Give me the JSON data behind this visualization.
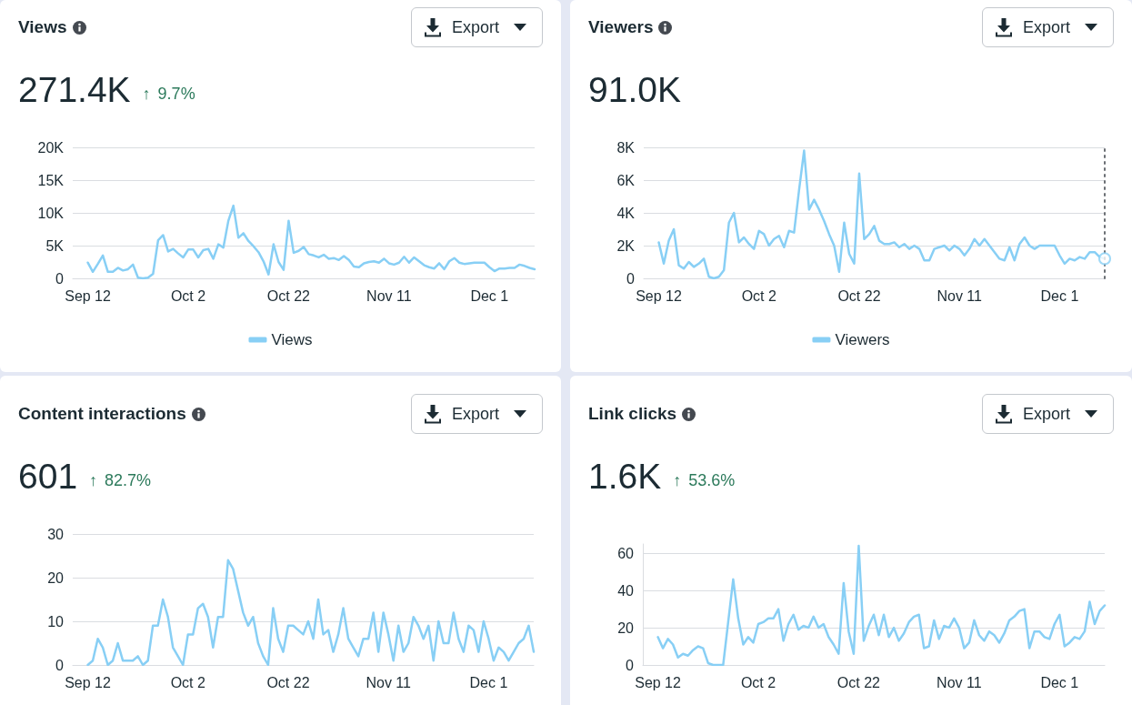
{
  "chart_data": [
    {
      "type": "line",
      "title": "Views",
      "subtitle": "271.4K",
      "annotations": [
        "↑ 9.7%",
        "Export"
      ],
      "x": [
        "--09-12",
        "--09-13",
        "--09-14",
        "--09-15",
        "--09-16",
        "--09-17",
        "--09-18",
        "--09-19",
        "--09-20",
        "--09-21",
        "--09-22",
        "--09-23",
        "--09-24",
        "--09-25",
        "--09-26",
        "--09-27",
        "--09-28",
        "--09-29",
        "--09-30",
        "--10-01",
        "--10-02",
        "--10-03",
        "--10-04",
        "--10-05",
        "--10-06",
        "--10-07",
        "--10-08",
        "--10-09",
        "--10-10",
        "--10-11",
        "--10-12",
        "--10-13",
        "--10-14",
        "--10-15",
        "--10-16",
        "--10-17",
        "--10-18",
        "--10-19",
        "--10-20",
        "--10-21",
        "--10-22",
        "--10-23",
        "--10-24",
        "--10-25",
        "--10-26",
        "--10-27",
        "--10-28",
        "--10-29",
        "--10-30",
        "--10-31",
        "--11-01",
        "--11-02",
        "--11-03",
        "--11-04",
        "--11-05",
        "--11-06",
        "--11-07",
        "--11-08",
        "--11-09",
        "--11-10",
        "--11-11",
        "--11-12",
        "--11-13",
        "--11-14",
        "--11-15",
        "--11-16",
        "--11-17",
        "--11-18",
        "--11-19",
        "--11-20",
        "--11-21",
        "--11-22",
        "--11-23",
        "--11-24",
        "--11-25",
        "--11-26",
        "--11-27",
        "--11-28",
        "--11-29",
        "--11-30",
        "--12-01",
        "--12-02",
        "--12-03",
        "--12-04",
        "--12-05",
        "--12-06",
        "--12-07",
        "--12-08",
        "--12-09",
        "--12-10"
      ],
      "series": [
        {
          "name": "Views",
          "color": "#88cff5",
          "values": [
            2400,
            1000,
            2200,
            3500,
            1000,
            1000,
            1600,
            1200,
            1400,
            2100,
            100,
            0,
            100,
            700,
            5800,
            6600,
            4100,
            4500,
            3800,
            3200,
            4400,
            4400,
            3200,
            4300,
            4500,
            3000,
            5200,
            4700,
            8800,
            11100,
            6200,
            6900,
            5700,
            4900,
            4000,
            2600,
            600,
            5200,
            2500,
            1300,
            8800,
            3900,
            4200,
            4800,
            3700,
            3500,
            3200,
            3600,
            3000,
            3100,
            2800,
            3400,
            2800,
            1800,
            1700,
            2300,
            2500,
            2600,
            2400,
            3000,
            2300,
            2100,
            2400,
            3300,
            2400,
            3200,
            2600,
            2000,
            1700,
            1500,
            2300,
            1400,
            2600,
            3100,
            2400,
            2200,
            2300,
            2400,
            2400,
            2400,
            1700,
            1100,
            1500,
            1500,
            1600,
            1600,
            2100,
            1900,
            1600,
            1400
          ]
        }
      ],
      "xlim": [
        "--09-09",
        "--12-10"
      ],
      "xticks": [
        {
          "value": "--09-12",
          "label": "Sep 12"
        },
        {
          "value": "--10-02",
          "label": "Oct 2"
        },
        {
          "value": "--10-22",
          "label": "Oct 22"
        },
        {
          "value": "--11-11",
          "label": "Nov 11"
        },
        {
          "value": "--12-01",
          "label": "Dec 1"
        }
      ],
      "ylim": [
        0,
        20000
      ],
      "yticks": [
        0,
        {
          "value": 5000,
          "label": "5K"
        },
        {
          "value": 10000,
          "label": "10K"
        },
        {
          "value": 15000,
          "label": "15K"
        },
        {
          "value": 20000,
          "label": "20K"
        }
      ],
      "grid": "y",
      "legend": "bottom",
      "marker": "none",
      "line_style": "solid"
    },
    {
      "type": "line",
      "title": "Viewers",
      "subtitle": "91.0K",
      "annotations": [
        "Export"
      ],
      "x": [
        "--09-12",
        "--09-13",
        "--09-14",
        "--09-15",
        "--09-16",
        "--09-17",
        "--09-18",
        "--09-19",
        "--09-20",
        "--09-21",
        "--09-22",
        "--09-23",
        "--09-24",
        "--09-25",
        "--09-26",
        "--09-27",
        "--09-28",
        "--09-29",
        "--09-30",
        "--10-01",
        "--10-02",
        "--10-03",
        "--10-04",
        "--10-05",
        "--10-06",
        "--10-07",
        "--10-08",
        "--10-09",
        "--10-10",
        "--10-11",
        "--10-12",
        "--10-13",
        "--10-14",
        "--10-15",
        "--10-16",
        "--10-17",
        "--10-18",
        "--10-19",
        "--10-20",
        "--10-21",
        "--10-22",
        "--10-23",
        "--10-24",
        "--10-25",
        "--10-26",
        "--10-27",
        "--10-28",
        "--10-29",
        "--10-30",
        "--10-31",
        "--11-01",
        "--11-02",
        "--11-03",
        "--11-04",
        "--11-05",
        "--11-06",
        "--11-07",
        "--11-08",
        "--11-09",
        "--11-10",
        "--11-11",
        "--11-12",
        "--11-13",
        "--11-14",
        "--11-15",
        "--11-16",
        "--11-17",
        "--11-18",
        "--11-19",
        "--11-20",
        "--11-21",
        "--11-22",
        "--11-23",
        "--11-24",
        "--11-25",
        "--11-26",
        "--11-27",
        "--11-28",
        "--11-29",
        "--11-30",
        "--12-01",
        "--12-02",
        "--12-03",
        "--12-04",
        "--12-05",
        "--12-06",
        "--12-07",
        "--12-08",
        "--12-09",
        "--12-10"
      ],
      "series": [
        {
          "name": "Viewers",
          "color": "#88cff5",
          "values": [
            2200,
            900,
            2300,
            3000,
            800,
            600,
            1000,
            700,
            900,
            1200,
            100,
            0,
            100,
            500,
            3400,
            4000,
            2200,
            2500,
            2100,
            1800,
            2900,
            2700,
            2000,
            2400,
            2600,
            1900,
            2900,
            2800,
            5400,
            7800,
            4200,
            4800,
            4200,
            3500,
            2700,
            2000,
            400,
            3400,
            1500,
            900,
            6400,
            2400,
            2700,
            3200,
            2300,
            2100,
            2100,
            2200,
            1900,
            2100,
            1800,
            2000,
            1800,
            1100,
            1100,
            1800,
            1900,
            2000,
            1700,
            2000,
            1800,
            1400,
            1800,
            2400,
            2000,
            2400,
            2000,
            1600,
            1200,
            1100,
            1900,
            1100,
            2100,
            2500,
            2000,
            1800,
            2000,
            2000,
            2000,
            2000,
            1400,
            900,
            1200,
            1100,
            1300,
            1200,
            1600,
            1600,
            1300,
            1200
          ]
        },
        {
          "type": "scatter",
          "color": "#88cff5",
          "marker": "circle",
          "x": [
            "--12-10"
          ],
          "values": [
            1200
          ]
        }
      ],
      "xlim": [
        "--09-09",
        "--12-10"
      ],
      "xticks": [
        {
          "value": "--09-12",
          "label": "Sep 12"
        },
        {
          "value": "--10-02",
          "label": "Oct 2"
        },
        {
          "value": "--10-22",
          "label": "Oct 22"
        },
        {
          "value": "--11-11",
          "label": "Nov 11"
        },
        {
          "value": "--12-01",
          "label": "Dec 1"
        }
      ],
      "ylim": [
        0,
        8000
      ],
      "yticks": [
        0,
        {
          "value": 2000,
          "label": "2K"
        },
        {
          "value": 4000,
          "label": "4K"
        },
        {
          "value": 6000,
          "label": "6K"
        },
        {
          "value": 8000,
          "label": "8K"
        }
      ],
      "ref_lines": [
        {
          "axis": "x",
          "value": "--12-10",
          "color": "#6b6f74",
          "line_style": "dotted"
        }
      ],
      "grid": "y",
      "legend": "bottom",
      "marker": "none",
      "line_style": "solid"
    },
    {
      "type": "line",
      "title": "Content interactions",
      "subtitle": "601",
      "annotations": [
        "↑ 82.7%",
        "Export"
      ],
      "x": [
        "--09-12",
        "--09-13",
        "--09-14",
        "--09-15",
        "--09-16",
        "--09-17",
        "--09-18",
        "--09-19",
        "--09-20",
        "--09-21",
        "--09-22",
        "--09-23",
        "--09-24",
        "--09-25",
        "--09-26",
        "--09-27",
        "--09-28",
        "--09-29",
        "--09-30",
        "--10-01",
        "--10-02",
        "--10-03",
        "--10-04",
        "--10-05",
        "--10-06",
        "--10-07",
        "--10-08",
        "--10-09",
        "--10-10",
        "--10-11",
        "--10-12",
        "--10-13",
        "--10-14",
        "--10-15",
        "--10-16",
        "--10-17",
        "--10-18",
        "--10-19",
        "--10-20",
        "--10-21",
        "--10-22",
        "--10-23",
        "--10-24",
        "--10-25",
        "--10-26",
        "--10-27",
        "--10-28",
        "--10-29",
        "--10-30",
        "--10-31",
        "--11-01",
        "--11-02",
        "--11-03",
        "--11-04",
        "--11-05",
        "--11-06",
        "--11-07",
        "--11-08",
        "--11-09",
        "--11-10",
        "--11-11",
        "--11-12",
        "--11-13",
        "--11-14",
        "--11-15",
        "--11-16",
        "--11-17",
        "--11-18",
        "--11-19",
        "--11-20",
        "--11-21",
        "--11-22",
        "--11-23",
        "--11-24",
        "--11-25",
        "--11-26",
        "--11-27",
        "--11-28",
        "--11-29",
        "--11-30",
        "--12-01",
        "--12-02",
        "--12-03",
        "--12-04",
        "--12-05",
        "--12-06",
        "--12-07",
        "--12-08",
        "--12-09",
        "--12-10"
      ],
      "series": [
        {
          "color": "#88cff5",
          "values": [
            0,
            1,
            6,
            4,
            0,
            1,
            5,
            1,
            1,
            1,
            2,
            0,
            1,
            9,
            9,
            15,
            11,
            4,
            2,
            0,
            7,
            7,
            13,
            14,
            11,
            4,
            11,
            11,
            24,
            22,
            17,
            12,
            9,
            11,
            5,
            2,
            0,
            13,
            6,
            3,
            9,
            9,
            8,
            7,
            10,
            6,
            15,
            7,
            8,
            3,
            7,
            13,
            6,
            4,
            2,
            6,
            6,
            12,
            3,
            12,
            7,
            1,
            9,
            3,
            5,
            11,
            9,
            6,
            9,
            1,
            10,
            5,
            5,
            12,
            6,
            3,
            9,
            8,
            3,
            10,
            6,
            1,
            4,
            3,
            1,
            3,
            5,
            6,
            9,
            3
          ]
        }
      ],
      "xlim": [
        "--09-09",
        "--12-10"
      ],
      "xticks": [
        {
          "value": "--09-12",
          "label": "Sep 12"
        },
        {
          "value": "--10-02",
          "label": "Oct 2"
        },
        {
          "value": "--10-22",
          "label": "Oct 22"
        },
        {
          "value": "--11-11",
          "label": "Nov 11"
        },
        {
          "value": "--12-01",
          "label": "Dec 1"
        }
      ],
      "ylim": [
        0,
        30
      ],
      "yticks": [
        0,
        10,
        20,
        30
      ],
      "grid": "y",
      "marker": "none",
      "line_style": "solid"
    },
    {
      "type": "line",
      "title": "Link clicks",
      "subtitle": "1.6K",
      "annotations": [
        "↑ 53.6%",
        "Export"
      ],
      "x": [
        "--09-12",
        "--09-13",
        "--09-14",
        "--09-15",
        "--09-16",
        "--09-17",
        "--09-18",
        "--09-19",
        "--09-20",
        "--09-21",
        "--09-22",
        "--09-23",
        "--09-24",
        "--09-25",
        "--09-26",
        "--09-27",
        "--09-28",
        "--09-29",
        "--09-30",
        "--10-01",
        "--10-02",
        "--10-03",
        "--10-04",
        "--10-05",
        "--10-06",
        "--10-07",
        "--10-08",
        "--10-09",
        "--10-10",
        "--10-11",
        "--10-12",
        "--10-13",
        "--10-14",
        "--10-15",
        "--10-16",
        "--10-17",
        "--10-18",
        "--10-19",
        "--10-20",
        "--10-21",
        "--10-22",
        "--10-23",
        "--10-24",
        "--10-25",
        "--10-26",
        "--10-27",
        "--10-28",
        "--10-29",
        "--10-30",
        "--10-31",
        "--11-01",
        "--11-02",
        "--11-03",
        "--11-04",
        "--11-05",
        "--11-06",
        "--11-07",
        "--11-08",
        "--11-09",
        "--11-10",
        "--11-11",
        "--11-12",
        "--11-13",
        "--11-14",
        "--11-15",
        "--11-16",
        "--11-17",
        "--11-18",
        "--11-19",
        "--11-20",
        "--11-21",
        "--11-22",
        "--11-23",
        "--11-24",
        "--11-25",
        "--11-26",
        "--11-27",
        "--11-28",
        "--11-29",
        "--11-30",
        "--12-01",
        "--12-02",
        "--12-03",
        "--12-04",
        "--12-05",
        "--12-06",
        "--12-07",
        "--12-08",
        "--12-09",
        "--12-10"
      ],
      "series": [
        {
          "color": "#88cff5",
          "values": [
            15,
            9,
            14,
            11,
            4,
            6,
            5,
            8,
            10,
            9,
            1,
            0,
            0,
            0,
            23,
            46,
            25,
            11,
            15,
            12,
            22,
            23,
            25,
            25,
            30,
            13,
            22,
            27,
            19,
            21,
            20,
            26,
            20,
            22,
            15,
            11,
            6,
            44,
            18,
            6,
            64,
            13,
            21,
            27,
            16,
            27,
            15,
            20,
            13,
            17,
            23,
            26,
            27,
            9,
            10,
            24,
            14,
            21,
            20,
            25,
            20,
            9,
            12,
            24,
            16,
            13,
            18,
            16,
            12,
            17,
            24,
            26,
            29,
            30,
            9,
            18,
            18,
            15,
            14,
            22,
            27,
            10,
            12,
            15,
            14,
            18,
            34,
            22,
            29,
            32
          ]
        }
      ],
      "xlim": [
        "--09-09",
        "--12-10"
      ],
      "xticks": [
        {
          "value": "--09-12",
          "label": "Sep 12"
        },
        {
          "value": "--10-02",
          "label": "Oct 2"
        },
        {
          "value": "--10-22",
          "label": "Oct 22"
        },
        {
          "value": "--11-11",
          "label": "Nov 11"
        },
        {
          "value": "--12-01",
          "label": "Dec 1"
        }
      ],
      "ylim": [
        0,
        65
      ],
      "yticks": [
        0,
        20,
        40,
        60
      ],
      "grid": "y",
      "marker": "none",
      "line_style": "solid"
    }
  ]
}
